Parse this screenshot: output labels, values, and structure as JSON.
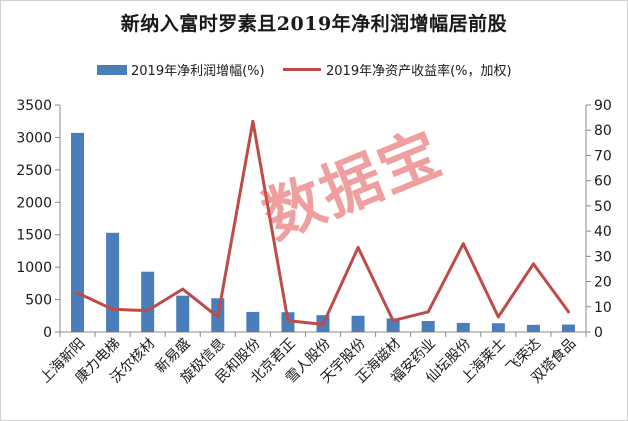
{
  "watermark": "数据宝",
  "colors": {
    "bar": "#4a7ebb",
    "line": "#be4b48",
    "axis": "#888888"
  },
  "chart_data": {
    "type": "bar",
    "title": "新纳入富时罗素且2019年净利润增幅居前股",
    "categories": [
      "上海新阳",
      "康力电梯",
      "沃尔核材",
      "新易盛",
      "旋极信息",
      "民和股份",
      "北京君正",
      "雪人股份",
      "天宇股份",
      "正海磁材",
      "福安药业",
      "仙坛股份",
      "上海莱士",
      "飞荣达",
      "双塔食品"
    ],
    "legend_position": "top",
    "grid": false,
    "series": [
      {
        "name": "2019年净利润增幅(%)",
        "type": "bar",
        "axis": "left",
        "values": [
          3070,
          1530,
          930,
          560,
          520,
          310,
          305,
          260,
          250,
          210,
          170,
          140,
          135,
          110,
          115
        ]
      },
      {
        "name": "2019年净资产收益率(%，加权)",
        "type": "line",
        "axis": "right",
        "values": [
          15.5,
          9,
          8.5,
          17,
          6,
          83.5,
          4.5,
          3,
          33.5,
          4.5,
          8,
          35,
          6,
          27,
          8
        ]
      }
    ],
    "y_left": {
      "min": 0,
      "max": 3500,
      "ticks": [
        "0",
        "500",
        "1000",
        "1500",
        "2000",
        "2500",
        "3000",
        "3500"
      ]
    },
    "y_right": {
      "min": 0,
      "max": 90,
      "ticks": [
        "0",
        "10",
        "20",
        "30",
        "40",
        "50",
        "60",
        "70",
        "80",
        "90"
      ]
    }
  }
}
